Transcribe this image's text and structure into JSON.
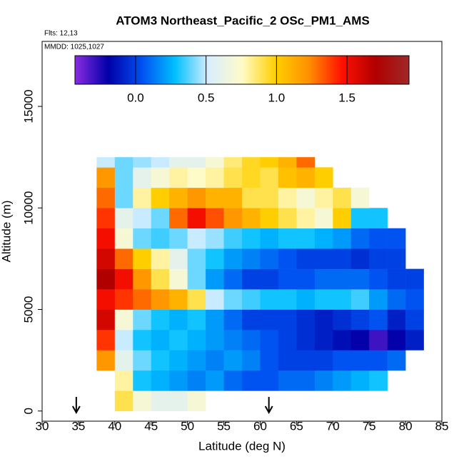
{
  "chart_data": {
    "type": "heatmap",
    "title": "ATOM3 Northeast_Pacific_2 OSc_PM1_AMS",
    "subtitle": "Flts: 12,13",
    "annotation": "MMDD: 1025,1027",
    "x_label": "Latitude (deg N)",
    "y_label": "Altitude (m)",
    "xlim": [
      30,
      85
    ],
    "xticks": [
      30,
      35,
      40,
      45,
      50,
      55,
      60,
      65,
      70,
      75,
      80,
      85
    ],
    "ylim": [
      -500,
      18200
    ],
    "yticks": [
      0,
      5000,
      10000,
      15000
    ],
    "x_bins": [
      35,
      37.5,
      40,
      42.5,
      45,
      47.5,
      50,
      52.5,
      55,
      57.5,
      60,
      62.5,
      65,
      67.5,
      70,
      72.5,
      75,
      77.5,
      80,
      82.5
    ],
    "y_bins": [
      0,
      1000,
      2000,
      3000,
      4000,
      5000,
      6000,
      7000,
      8000,
      9000,
      10000,
      11000,
      12000,
      12500
    ],
    "values": [
      [
        null,
        null,
        0.9,
        0.7,
        0.6,
        0.6,
        0.7,
        null,
        null,
        null,
        null,
        null,
        null,
        null,
        null,
        null,
        null,
        null,
        null
      ],
      [
        null,
        null,
        0.8,
        0.3,
        0.25,
        0.2,
        0.15,
        0.2,
        0.1,
        0.05,
        0.05,
        0.1,
        0.1,
        0.15,
        0.2,
        0.25,
        0.3,
        null,
        null
      ],
      [
        null,
        1.2,
        0.6,
        0.4,
        0.3,
        0.25,
        0.2,
        0.15,
        0.2,
        0.15,
        0.05,
        0,
        0,
        0,
        0.05,
        0.05,
        0.05,
        0.1,
        null
      ],
      [
        null,
        1.4,
        0.5,
        0.3,
        0.25,
        0.3,
        0.25,
        0.2,
        0.15,
        0.1,
        0.05,
        0,
        -0.05,
        -0.1,
        -0.15,
        -0.2,
        -0.3,
        -0.2,
        -0.1
      ],
      [
        null,
        1.6,
        0.7,
        0.4,
        0.3,
        0.25,
        0.3,
        0.2,
        0.1,
        0,
        0,
        0,
        -0.05,
        -0.1,
        -0.05,
        0,
        0.05,
        -0.1,
        0
      ],
      [
        null,
        1.5,
        1.4,
        1.3,
        1.2,
        1.1,
        0.9,
        0.5,
        0.4,
        0.35,
        0.3,
        0.3,
        0.25,
        0.3,
        0.3,
        0.35,
        0.2,
        0.1,
        0.05
      ],
      [
        null,
        1.7,
        1.5,
        1.2,
        0.9,
        0.7,
        0.4,
        0.2,
        0.1,
        0,
        0,
        0.05,
        0.05,
        0.1,
        0.1,
        0.1,
        0.05,
        0,
        0
      ],
      [
        null,
        1.6,
        1.3,
        1,
        0.8,
        0.6,
        0.4,
        0.3,
        0.2,
        0.15,
        0.1,
        0.05,
        0,
        0,
        0,
        -0.05,
        0,
        0,
        null
      ],
      [
        null,
        1.5,
        0.7,
        0.4,
        0.35,
        0.4,
        0.5,
        0.45,
        0.35,
        0.3,
        0.25,
        0.3,
        0.3,
        0.25,
        0.2,
        0.1,
        0.05,
        0.05,
        null
      ],
      [
        null,
        1.4,
        0.6,
        0.5,
        0.4,
        1.3,
        1.5,
        1.35,
        1.2,
        1.1,
        1,
        0.9,
        0.8,
        0.7,
        1,
        0.3,
        0.3,
        null,
        null
      ],
      [
        null,
        1.3,
        0.4,
        0.8,
        1,
        1.1,
        1.2,
        1.1,
        1.1,
        0.9,
        0.9,
        0.8,
        0.7,
        0.8,
        0.9,
        0.7,
        null,
        null,
        null
      ],
      [
        null,
        1.2,
        0.4,
        0.6,
        0.7,
        0.8,
        0.75,
        0.8,
        0.9,
        0.95,
        0.9,
        1.05,
        1.1,
        1,
        null,
        null,
        null,
        null,
        null
      ],
      [
        null,
        0.5,
        0.4,
        0.45,
        0.5,
        0.6,
        0.6,
        0.7,
        0.85,
        0.95,
        1,
        1.1,
        1.3,
        null,
        null,
        null,
        null,
        null,
        null
      ]
    ],
    "clim": [
      -0.43,
      1.94
    ],
    "cticks": [
      {
        "value": 0,
        "label": "0.0"
      },
      {
        "value": 0.5,
        "label": "0.5"
      },
      {
        "value": 1,
        "label": "1.0"
      },
      {
        "value": 1.5,
        "label": "1.5"
      }
    ],
    "colormap": [
      "#8a2be2",
      "#0000a8",
      "#0050f0",
      "#00c0ff",
      "#d8eeff",
      "#fffbc8",
      "#ffd000",
      "#ff9000",
      "#ff1000",
      "#b00000",
      "#a02828"
    ],
    "arrows_x": [
      34.7,
      61.2
    ]
  }
}
